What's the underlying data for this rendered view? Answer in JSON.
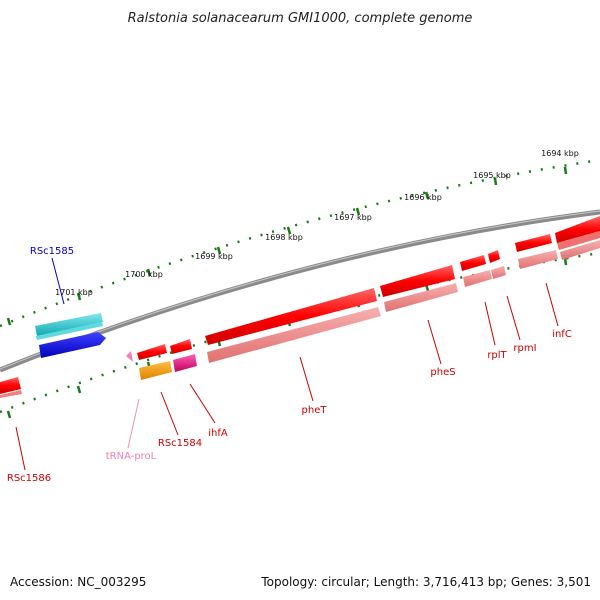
{
  "title": "Ralstonia solanacearum GMI1000, complete genome",
  "footer": {
    "accession": "Accession: NC_003295",
    "topology": "Topology: circular; Length: 3,716,413 bp; Genes: 3,501"
  },
  "ticks": [
    "1694 kbp",
    "1695 kbp",
    "1696 kbp",
    "1697 kbp",
    "1698 kbp",
    "1699 kbp",
    "1700 kbp",
    "1701 kbp"
  ],
  "genes": [
    {
      "name": "infC",
      "color": "#cc0000"
    },
    {
      "name": "rpmI",
      "color": "#cc0000"
    },
    {
      "name": "rplT",
      "color": "#cc0000"
    },
    {
      "name": "pheS",
      "color": "#cc0000"
    },
    {
      "name": "pheT",
      "color": "#cc0000"
    },
    {
      "name": "ihfA",
      "color": "#cc0000"
    },
    {
      "name": "RSc1584",
      "color": "#cc0000"
    },
    {
      "name": "tRNA-proL",
      "color": "#f080b0"
    },
    {
      "name": "RSc1586",
      "color": "#cc0000"
    },
    {
      "name": "RSc1585",
      "color": "#0000cc"
    }
  ],
  "colors": {
    "backbone": "#808080",
    "tick": "#1a7a1a",
    "cds": "#ff0000",
    "cds_shadow": "#f08080",
    "cyan": "#20c0c8",
    "blue": "#0000ee",
    "orange": "#ff9900",
    "magenta": "#e0007a",
    "trna": "#f080b0"
  }
}
